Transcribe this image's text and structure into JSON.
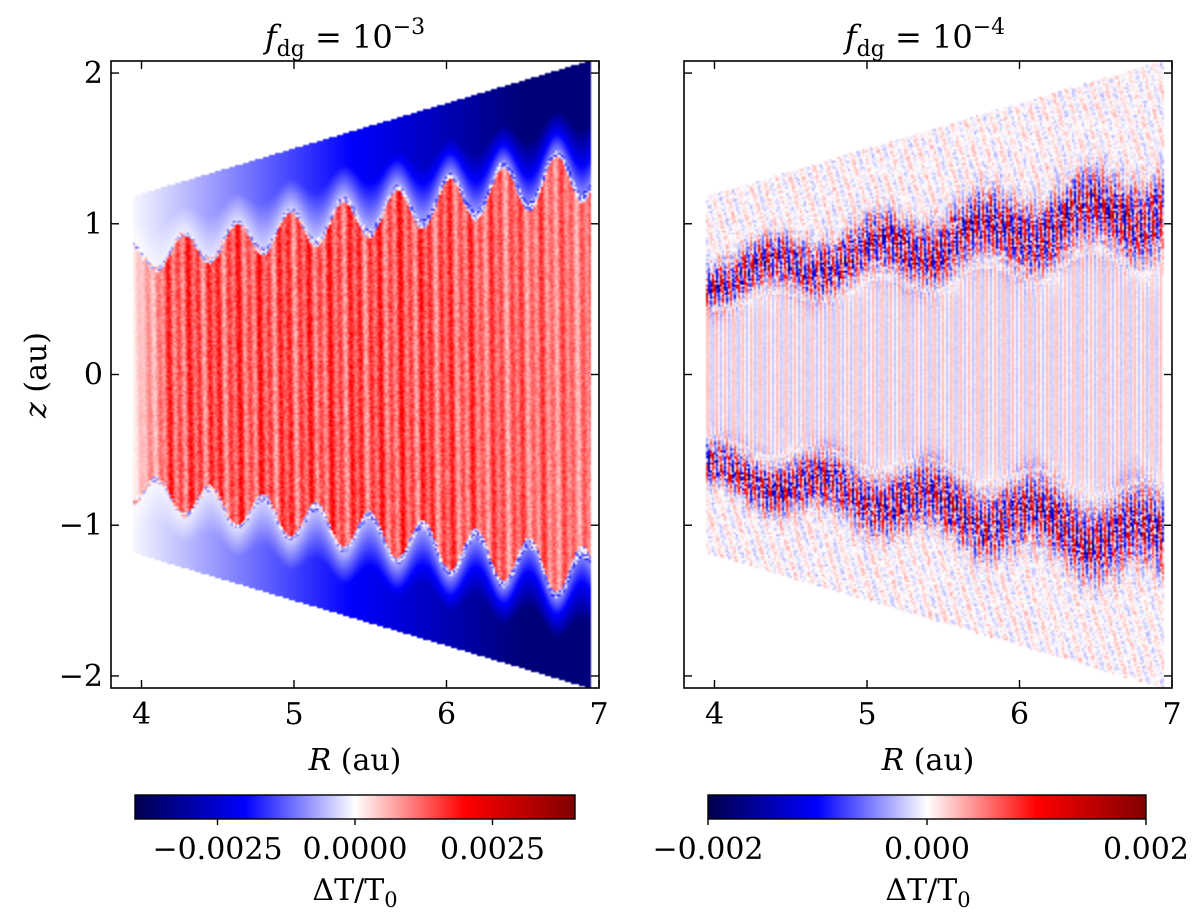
{
  "chart_data": [
    {
      "type": "heatmap",
      "title": "f_dg = 10^-3",
      "title_main": "f",
      "title_sub": "dg",
      "title_eq": " = 10",
      "title_exp": "−3",
      "xlabel": "R (au)",
      "xlabel_var": "R",
      "xlabel_unit": " (au)",
      "ylabel": "z (au)",
      "ylabel_var": "z",
      "ylabel_unit": " (au)",
      "xlim": [
        3.8,
        7.0
      ],
      "ylim": [
        -2.08,
        2.08
      ],
      "x_ticks": [
        4,
        5,
        6,
        7
      ],
      "x_tick_labels": [
        "4",
        "5",
        "6",
        "7"
      ],
      "y_ticks": [
        -2,
        -1,
        0,
        1,
        2
      ],
      "y_tick_labels": [
        "−2",
        "−1",
        "0",
        "1",
        "2"
      ],
      "show_y_tick_labels": true,
      "colormap": "seismic",
      "colorbar": {
        "label": "ΔT/T0",
        "label_main": "ΔT/T",
        "label_sub": "0",
        "range": [
          -0.004,
          0.004
        ],
        "ticks": [
          -0.0025,
          0.0,
          0.0025
        ],
        "tick_labels": [
          "−0.0025",
          "0.0000",
          "0.0025"
        ]
      },
      "field_description_values": {
        "wedge_inner_radius_au": 3.95,
        "wedge_outer_radius_au": 6.95,
        "wedge_half_angle_z_over_R": 0.3,
        "midplane_dT": 0.0024,
        "upper_layer_dT": -0.0035,
        "transition_height_z_over_R": 0.19
      }
    },
    {
      "type": "heatmap",
      "title": "f_dg = 10^-4",
      "title_main": "f",
      "title_sub": "dg",
      "title_eq": " = 10",
      "title_exp": "−4",
      "xlabel": "R (au)",
      "xlabel_var": "R",
      "xlabel_unit": " (au)",
      "ylabel": "",
      "xlim": [
        3.8,
        7.0
      ],
      "ylim": [
        -2.08,
        2.08
      ],
      "x_ticks": [
        4,
        5,
        6,
        7
      ],
      "x_tick_labels": [
        "4",
        "5",
        "6",
        "7"
      ],
      "y_ticks": [
        -2,
        -1,
        0,
        1,
        2
      ],
      "y_tick_labels": [
        "−2",
        "−1",
        "0",
        "1",
        "2"
      ],
      "show_y_tick_labels": false,
      "colormap": "seismic",
      "colorbar": {
        "label": "ΔT/T0",
        "label_main": "ΔT/T",
        "label_sub": "0",
        "range": [
          -0.002,
          0.002
        ],
        "ticks": [
          -0.002,
          0.0,
          0.002
        ],
        "tick_labels": [
          "−0.002",
          "0.000",
          "0.002"
        ]
      },
      "field_description_values": {
        "wedge_inner_radius_au": 3.95,
        "wedge_outer_radius_au": 6.95,
        "wedge_half_angle_z_over_R": 0.3,
        "midplane_dT": 0.0002,
        "layer_height_z_over_R": 0.16,
        "layer_amplitude_dT": 0.0018
      }
    }
  ],
  "colors": {
    "dark_blue": "#00004c",
    "blue": "#0000ff",
    "white": "#ffffff",
    "red": "#ff0000",
    "dark_red": "#800000"
  }
}
